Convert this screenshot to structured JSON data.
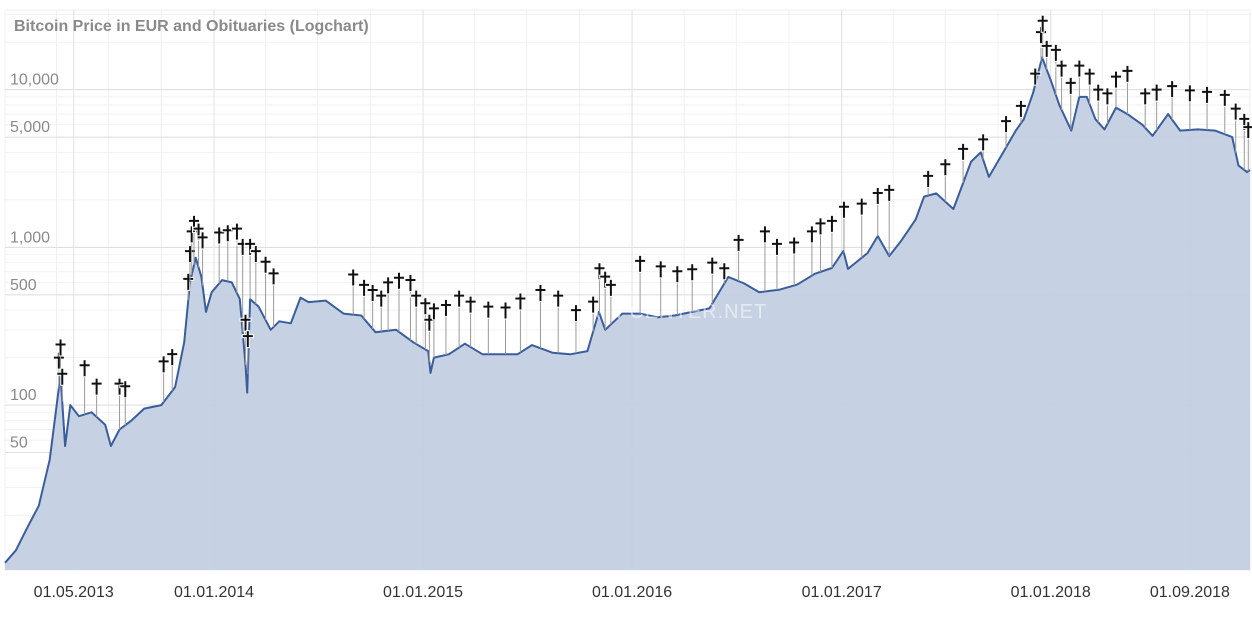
{
  "chart_data": {
    "type": "area",
    "title": "Bitcoin Price in EUR and Obituaries (Logchart)",
    "watermark": "BLOCKCHAIN CENTER.NET",
    "xlabel": "",
    "ylabel": "",
    "y_scale": "log",
    "ylim": [
      9,
      32000
    ],
    "xlim": [
      "2013-01-01",
      "2018-12-15"
    ],
    "grid": true,
    "legend": "none",
    "x_ticks": [
      {
        "date": "2013-05-01",
        "label": "01.05.2013"
      },
      {
        "date": "2014-01-01",
        "label": "01.01.2014"
      },
      {
        "date": "2015-01-01",
        "label": "01.01.2015"
      },
      {
        "date": "2016-01-01",
        "label": "01.01.2016"
      },
      {
        "date": "2017-01-01",
        "label": "01.01.2017"
      },
      {
        "date": "2018-01-01",
        "label": "01.01.2018"
      },
      {
        "date": "2018-09-01",
        "label": "01.09.2018"
      }
    ],
    "y_ticks": [
      {
        "value": 50,
        "label": "50"
      },
      {
        "value": 100,
        "label": "100"
      },
      {
        "value": 500,
        "label": "500"
      },
      {
        "value": 1000,
        "label": "1,000"
      },
      {
        "value": 5000,
        "label": "5,000"
      },
      {
        "value": 10000,
        "label": "10,000"
      }
    ],
    "colors": {
      "line": "#3a5d9c",
      "fill": "#c3cfe2",
      "grid": "#e6e6e6",
      "marker": "#111111",
      "stem": "#9a9a9a",
      "text": "#8a8a8a"
    },
    "series": [
      {
        "type": "area",
        "points": [
          [
            "2013-01-01",
            10
          ],
          [
            "2013-01-20",
            12
          ],
          [
            "2013-02-10",
            17
          ],
          [
            "2013-03-01",
            23
          ],
          [
            "2013-03-20",
            45
          ],
          [
            "2013-04-08",
            155
          ],
          [
            "2013-04-16",
            55
          ],
          [
            "2013-04-25",
            100
          ],
          [
            "2013-05-10",
            85
          ],
          [
            "2013-06-01",
            90
          ],
          [
            "2013-06-25",
            75
          ],
          [
            "2013-07-05",
            55
          ],
          [
            "2013-07-20",
            70
          ],
          [
            "2013-08-10",
            80
          ],
          [
            "2013-09-01",
            95
          ],
          [
            "2013-10-01",
            100
          ],
          [
            "2013-10-25",
            130
          ],
          [
            "2013-11-10",
            250
          ],
          [
            "2013-11-20",
            600
          ],
          [
            "2013-11-30",
            860
          ],
          [
            "2013-12-10",
            650
          ],
          [
            "2013-12-18",
            390
          ],
          [
            "2013-12-28",
            520
          ],
          [
            "2014-01-15",
            620
          ],
          [
            "2014-02-01",
            600
          ],
          [
            "2014-02-15",
            470
          ],
          [
            "2014-02-25",
            180
          ],
          [
            "2014-02-28",
            120
          ],
          [
            "2014-03-05",
            470
          ],
          [
            "2014-03-20",
            420
          ],
          [
            "2014-04-10",
            300
          ],
          [
            "2014-04-25",
            340
          ],
          [
            "2014-05-15",
            330
          ],
          [
            "2014-06-01",
            480
          ],
          [
            "2014-06-15",
            450
          ],
          [
            "2014-07-15",
            460
          ],
          [
            "2014-08-15",
            380
          ],
          [
            "2014-09-15",
            370
          ],
          [
            "2014-10-10",
            290
          ],
          [
            "2014-11-15",
            300
          ],
          [
            "2014-12-15",
            250
          ],
          [
            "2015-01-10",
            220
          ],
          [
            "2015-01-14",
            160
          ],
          [
            "2015-01-20",
            200
          ],
          [
            "2015-02-15",
            210
          ],
          [
            "2015-03-15",
            245
          ],
          [
            "2015-04-15",
            210
          ],
          [
            "2015-05-15",
            210
          ],
          [
            "2015-06-15",
            210
          ],
          [
            "2015-07-10",
            240
          ],
          [
            "2015-08-15",
            215
          ],
          [
            "2015-09-15",
            210
          ],
          [
            "2015-10-15",
            220
          ],
          [
            "2015-11-04",
            390
          ],
          [
            "2015-11-15",
            300
          ],
          [
            "2015-12-15",
            380
          ],
          [
            "2016-01-15",
            380
          ],
          [
            "2016-02-15",
            360
          ],
          [
            "2016-03-15",
            370
          ],
          [
            "2016-04-15",
            390
          ],
          [
            "2016-05-15",
            410
          ],
          [
            "2016-06-17",
            650
          ],
          [
            "2016-07-15",
            590
          ],
          [
            "2016-08-10",
            520
          ],
          [
            "2016-09-15",
            540
          ],
          [
            "2016-10-15",
            580
          ],
          [
            "2016-11-15",
            680
          ],
          [
            "2016-12-15",
            740
          ],
          [
            "2017-01-04",
            950
          ],
          [
            "2017-01-12",
            730
          ],
          [
            "2017-02-15",
            920
          ],
          [
            "2017-03-05",
            1180
          ],
          [
            "2017-03-25",
            880
          ],
          [
            "2017-04-15",
            1100
          ],
          [
            "2017-05-10",
            1500
          ],
          [
            "2017-05-25",
            2100
          ],
          [
            "2017-06-15",
            2200
          ],
          [
            "2017-07-15",
            1750
          ],
          [
            "2017-08-15",
            3500
          ],
          [
            "2017-09-01",
            4000
          ],
          [
            "2017-09-15",
            2800
          ],
          [
            "2017-10-10",
            4000
          ],
          [
            "2017-11-01",
            5500
          ],
          [
            "2017-11-15",
            6500
          ],
          [
            "2017-12-01",
            9500
          ],
          [
            "2017-12-17",
            16000
          ],
          [
            "2018-01-01",
            11500
          ],
          [
            "2018-01-16",
            8000
          ],
          [
            "2018-02-06",
            5500
          ],
          [
            "2018-02-20",
            9000
          ],
          [
            "2018-03-05",
            9000
          ],
          [
            "2018-03-20",
            6500
          ],
          [
            "2018-04-05",
            5600
          ],
          [
            "2018-04-25",
            7700
          ],
          [
            "2018-05-15",
            7000
          ],
          [
            "2018-06-10",
            6000
          ],
          [
            "2018-06-28",
            5100
          ],
          [
            "2018-07-25",
            7000
          ],
          [
            "2018-08-15",
            5500
          ],
          [
            "2018-09-15",
            5600
          ],
          [
            "2018-10-15",
            5500
          ],
          [
            "2018-11-14",
            5000
          ],
          [
            "2018-11-25",
            3300
          ],
          [
            "2018-12-10",
            3000
          ],
          [
            "2018-12-15",
            3100
          ]
        ]
      },
      {
        "type": "markers",
        "marker": "cross",
        "points": [
          [
            "2013-04-05",
            190
          ],
          [
            "2013-04-08",
            230
          ],
          [
            "2013-04-11",
            150
          ],
          [
            "2013-05-20",
            170
          ],
          [
            "2013-06-10",
            130
          ],
          [
            "2013-07-20",
            130
          ],
          [
            "2013-07-30",
            125
          ],
          [
            "2013-10-05",
            180
          ],
          [
            "2013-10-20",
            200
          ],
          [
            "2013-11-17",
            600
          ],
          [
            "2013-11-20",
            900
          ],
          [
            "2013-11-23",
            1200
          ],
          [
            "2013-11-27",
            1400
          ],
          [
            "2013-12-05",
            1250
          ],
          [
            "2013-12-12",
            1100
          ],
          [
            "2014-01-10",
            1180
          ],
          [
            "2014-01-25",
            1220
          ],
          [
            "2014-02-10",
            1250
          ],
          [
            "2014-02-20",
            1000
          ],
          [
            "2014-02-25",
            330
          ],
          [
            "2014-03-01",
            260
          ],
          [
            "2014-03-05",
            1000
          ],
          [
            "2014-03-15",
            900
          ],
          [
            "2014-04-01",
            770
          ],
          [
            "2014-04-15",
            650
          ],
          [
            "2014-09-01",
            640
          ],
          [
            "2014-09-20",
            550
          ],
          [
            "2014-10-05",
            510
          ],
          [
            "2014-10-20",
            470
          ],
          [
            "2014-11-01",
            570
          ],
          [
            "2014-11-20",
            610
          ],
          [
            "2014-12-10",
            590
          ],
          [
            "2014-12-20",
            470
          ],
          [
            "2015-01-05",
            420
          ],
          [
            "2015-01-12",
            330
          ],
          [
            "2015-01-20",
            390
          ],
          [
            "2015-02-10",
            410
          ],
          [
            "2015-03-05",
            470
          ],
          [
            "2015-03-25",
            430
          ],
          [
            "2015-04-25",
            400
          ],
          [
            "2015-05-25",
            395
          ],
          [
            "2015-06-20",
            450
          ],
          [
            "2015-07-25",
            510
          ],
          [
            "2015-08-25",
            470
          ],
          [
            "2015-09-25",
            380
          ],
          [
            "2015-10-25",
            430
          ],
          [
            "2015-11-05",
            700
          ],
          [
            "2015-11-15",
            620
          ],
          [
            "2015-11-25",
            550
          ],
          [
            "2016-01-15",
            780
          ],
          [
            "2016-02-20",
            720
          ],
          [
            "2016-03-20",
            670
          ],
          [
            "2016-04-15",
            690
          ],
          [
            "2016-05-20",
            760
          ],
          [
            "2016-06-10",
            700
          ],
          [
            "2016-07-05",
            1060
          ],
          [
            "2016-08-20",
            1200
          ],
          [
            "2016-09-10",
            1000
          ],
          [
            "2016-10-10",
            1020
          ],
          [
            "2016-11-10",
            1200
          ],
          [
            "2016-11-25",
            1350
          ],
          [
            "2016-12-15",
            1400
          ],
          [
            "2017-01-05",
            1720
          ],
          [
            "2017-02-05",
            1800
          ],
          [
            "2017-03-05",
            2100
          ],
          [
            "2017-03-25",
            2200
          ],
          [
            "2017-06-01",
            2700
          ],
          [
            "2017-07-01",
            3200
          ],
          [
            "2017-08-01",
            4000
          ],
          [
            "2017-09-05",
            4600
          ],
          [
            "2017-10-15",
            6000
          ],
          [
            "2017-11-10",
            7500
          ],
          [
            "2017-12-05",
            12000
          ],
          [
            "2017-12-15",
            22000
          ],
          [
            "2017-12-18",
            26000
          ],
          [
            "2017-12-25",
            18000
          ],
          [
            "2018-01-10",
            17000
          ],
          [
            "2018-01-20",
            13500
          ],
          [
            "2018-02-05",
            10500
          ],
          [
            "2018-02-20",
            13500
          ],
          [
            "2018-03-10",
            12000
          ],
          [
            "2018-03-25",
            9500
          ],
          [
            "2018-04-10",
            9000
          ],
          [
            "2018-04-25",
            11500
          ],
          [
            "2018-05-15",
            12500
          ],
          [
            "2018-06-15",
            9000
          ],
          [
            "2018-07-05",
            9500
          ],
          [
            "2018-08-01",
            10000
          ],
          [
            "2018-09-01",
            9400
          ],
          [
            "2018-10-01",
            9200
          ],
          [
            "2018-11-01",
            8800
          ],
          [
            "2018-11-20",
            7200
          ],
          [
            "2018-12-05",
            6200
          ],
          [
            "2018-12-12",
            5500
          ]
        ]
      }
    ]
  }
}
